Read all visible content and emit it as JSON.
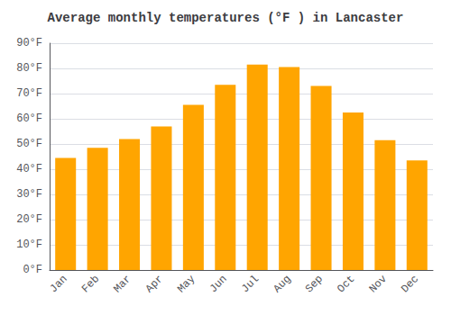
{
  "chart_data": {
    "type": "bar",
    "title": "Average monthly temperatures (°F ) in Lancaster",
    "categories": [
      "Jan",
      "Feb",
      "Mar",
      "Apr",
      "May",
      "Jun",
      "Jul",
      "Aug",
      "Sep",
      "Oct",
      "Nov",
      "Dec"
    ],
    "values": [
      44.5,
      48.5,
      52.0,
      57.0,
      65.5,
      73.5,
      81.5,
      80.5,
      73.0,
      62.5,
      51.5,
      43.5
    ],
    "color": "#FFA500",
    "ylim": [
      0,
      90
    ],
    "yticks": [
      {
        "value": 0,
        "label": "0°F"
      },
      {
        "value": 10,
        "label": "10°F"
      },
      {
        "value": 20,
        "label": "20°F"
      },
      {
        "value": 30,
        "label": "30°F"
      },
      {
        "value": 40,
        "label": "40°F"
      },
      {
        "value": 50,
        "label": "50°F"
      },
      {
        "value": 60,
        "label": "60°F"
      },
      {
        "value": 70,
        "label": "70°F"
      },
      {
        "value": 80,
        "label": "80°F"
      },
      {
        "value": 90,
        "label": "90°F"
      }
    ],
    "grid": true
  }
}
